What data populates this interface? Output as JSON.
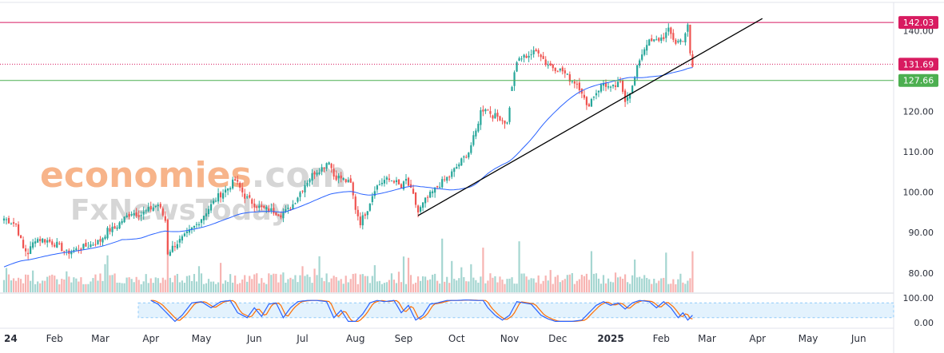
{
  "watermark": {
    "line1_a": "economies",
    "line1_b": ".com",
    "line2_a": "Fx",
    "line2_b": "NewsToday"
  },
  "colors": {
    "up": "#26a69a",
    "down": "#ef5350",
    "ma": "#2962ff",
    "resistance": "#d81b60",
    "support": "#4caf50",
    "trend": "#000000",
    "stoch_k": "#2962ff",
    "stoch_d": "#ff6d00",
    "stoch_band": "#e3f2fd",
    "volume_up": "#a5d6d1",
    "volume_down": "#f7b4b2",
    "watermark_orange": "#f7b48a",
    "watermark_grey": "#d6d6d6"
  },
  "chart_data": {
    "type": "candlestick",
    "title": "",
    "price_axis": {
      "ticks": [
        "140.00",
        "120.00",
        "110.00",
        "100.00",
        "90.00",
        "80.00"
      ],
      "ylim": [
        76,
        146
      ]
    },
    "stoch_axis": {
      "ticks": [
        "100.00",
        "0.00"
      ],
      "ylim": [
        -10,
        110
      ],
      "band": [
        20,
        80
      ]
    },
    "x_labels": [
      "24",
      "Feb",
      "Mar",
      "Apr",
      "May",
      "Jun",
      "Jul",
      "Aug",
      "Sep",
      "Oct",
      "Nov",
      "Dec",
      "2025",
      "Feb",
      "Mar",
      "Apr",
      "May",
      "Jun"
    ],
    "x_label_index": [
      0,
      21,
      40,
      61,
      82,
      104,
      124,
      146,
      166,
      188,
      210,
      230,
      252,
      273,
      292,
      313,
      334,
      355
    ],
    "bold_labels": [
      "24",
      "2025"
    ],
    "levels": [
      {
        "label": "142.03",
        "value": 142.03,
        "style": "solid",
        "color": "#d81b60"
      },
      {
        "label": "131.69",
        "value": 131.69,
        "style": "dotted",
        "color": "#d81b60"
      },
      {
        "label": "127.66",
        "value": 127.66,
        "style": "solid",
        "color": "#4caf50"
      }
    ],
    "trendline": {
      "start": {
        "index": 172,
        "value": 94.2
      },
      "end": {
        "index": 315,
        "value": 143.0
      }
    },
    "anchors": [
      [
        0,
        93.5
      ],
      [
        5,
        92
      ],
      [
        8,
        86
      ],
      [
        10,
        85
      ],
      [
        13,
        88.5
      ],
      [
        18,
        88
      ],
      [
        22,
        87
      ],
      [
        26,
        85
      ],
      [
        31,
        86
      ],
      [
        36,
        87
      ],
      [
        40,
        88
      ],
      [
        43,
        90.5
      ],
      [
        46,
        91
      ],
      [
        49,
        93
      ],
      [
        53,
        95
      ],
      [
        57,
        94.5
      ],
      [
        61,
        96
      ],
      [
        64,
        97
      ],
      [
        67,
        93
      ],
      [
        68,
        85
      ],
      [
        71,
        87
      ],
      [
        75,
        89
      ],
      [
        80,
        92
      ],
      [
        85,
        96
      ],
      [
        89,
        99
      ],
      [
        93,
        101
      ],
      [
        96,
        103
      ],
      [
        100,
        99
      ],
      [
        104,
        97
      ],
      [
        107,
        96
      ],
      [
        111,
        95.5
      ],
      [
        115,
        94.5
      ],
      [
        119,
        96
      ],
      [
        122,
        99
      ],
      [
        125,
        102
      ],
      [
        129,
        105
      ],
      [
        132,
        106
      ],
      [
        135,
        108
      ],
      [
        137,
        104
      ],
      [
        140,
        103.5
      ],
      [
        144,
        102
      ],
      [
        146,
        96
      ],
      [
        148,
        92.5
      ],
      [
        151,
        96
      ],
      [
        154,
        101
      ],
      [
        158,
        103
      ],
      [
        162,
        103
      ],
      [
        165,
        101
      ],
      [
        167,
        103
      ],
      [
        170,
        99
      ],
      [
        172,
        95
      ],
      [
        175,
        98
      ],
      [
        178,
        100
      ],
      [
        181,
        102
      ],
      [
        185,
        104
      ],
      [
        189,
        107
      ],
      [
        193,
        110
      ],
      [
        196,
        115
      ],
      [
        198,
        120
      ],
      [
        200,
        121
      ],
      [
        203,
        119
      ],
      [
        206,
        118.5
      ],
      [
        209,
        117
      ],
      [
        212,
        130
      ],
      [
        214,
        133
      ],
      [
        218,
        134
      ],
      [
        222,
        135
      ],
      [
        225,
        132
      ],
      [
        228,
        131
      ],
      [
        232,
        130
      ],
      [
        235,
        128
      ],
      [
        238,
        127
      ],
      [
        240,
        125
      ],
      [
        242,
        121
      ],
      [
        245,
        124
      ],
      [
        249,
        127
      ],
      [
        252,
        125.5
      ],
      [
        256,
        127
      ],
      [
        258,
        123
      ],
      [
        261,
        126
      ],
      [
        264,
        133
      ],
      [
        267,
        137
      ],
      [
        271,
        137.5
      ],
      [
        274,
        138.5
      ],
      [
        276,
        140
      ],
      [
        279,
        137
      ],
      [
        282,
        138
      ],
      [
        284,
        141
      ],
      [
        285,
        134
      ],
      [
        286,
        131
      ]
    ],
    "gap_after_index": 210,
    "stoch_anchors": [
      [
        61,
        90
      ],
      [
        64,
        75
      ],
      [
        68,
        35
      ],
      [
        71,
        5
      ],
      [
        74,
        30
      ],
      [
        78,
        80
      ],
      [
        82,
        85
      ],
      [
        86,
        60
      ],
      [
        90,
        85
      ],
      [
        94,
        90
      ],
      [
        97,
        40
      ],
      [
        101,
        20
      ],
      [
        104,
        60
      ],
      [
        107,
        25
      ],
      [
        110,
        75
      ],
      [
        113,
        80
      ],
      [
        116,
        20
      ],
      [
        119,
        60
      ],
      [
        122,
        85
      ],
      [
        126,
        90
      ],
      [
        130,
        90
      ],
      [
        134,
        85
      ],
      [
        137,
        20
      ],
      [
        140,
        50
      ],
      [
        143,
        5
      ],
      [
        146,
        5
      ],
      [
        149,
        35
      ],
      [
        152,
        80
      ],
      [
        155,
        90
      ],
      [
        158,
        85
      ],
      [
        162,
        90
      ],
      [
        165,
        40
      ],
      [
        168,
        70
      ],
      [
        171,
        10
      ],
      [
        174,
        30
      ],
      [
        177,
        75
      ],
      [
        180,
        80
      ],
      [
        184,
        90
      ],
      [
        188,
        90
      ],
      [
        192,
        92
      ],
      [
        196,
        90
      ],
      [
        199,
        90
      ],
      [
        201,
        60
      ],
      [
        204,
        30
      ],
      [
        207,
        10
      ],
      [
        210,
        30
      ],
      [
        213,
        85
      ],
      [
        216,
        80
      ],
      [
        219,
        75
      ],
      [
        223,
        30
      ],
      [
        226,
        15
      ],
      [
        229,
        5
      ],
      [
        232,
        5
      ],
      [
        236,
        5
      ],
      [
        240,
        10
      ],
      [
        243,
        40
      ],
      [
        246,
        70
      ],
      [
        249,
        85
      ],
      [
        252,
        70
      ],
      [
        255,
        80
      ],
      [
        258,
        55
      ],
      [
        261,
        80
      ],
      [
        264,
        90
      ],
      [
        268,
        85
      ],
      [
        271,
        60
      ],
      [
        274,
        85
      ],
      [
        277,
        60
      ],
      [
        280,
        20
      ],
      [
        282,
        40
      ],
      [
        284,
        10
      ],
      [
        286,
        30
      ]
    ]
  }
}
